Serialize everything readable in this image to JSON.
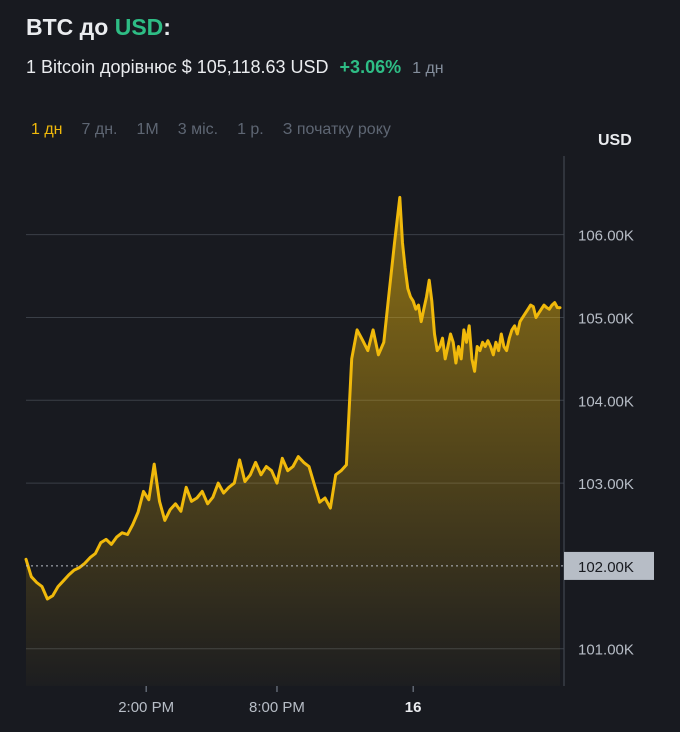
{
  "header": {
    "base": "BTC",
    "connector": "до",
    "quote": "USD",
    "colon": ":"
  },
  "price_line": {
    "text": "1 Bitcoin дорівнює $ 105,118.63 USD",
    "change": "+3.06%",
    "period": "1 дн"
  },
  "tabs": [
    {
      "label": "1 дн",
      "active": true
    },
    {
      "label": "7 дн.",
      "active": false
    },
    {
      "label": "1M",
      "active": false
    },
    {
      "label": "3 міс.",
      "active": false
    },
    {
      "label": "1 р.",
      "active": false
    },
    {
      "label": "З початку року",
      "active": false
    }
  ],
  "colors": {
    "background": "#181a20",
    "line": "#f0b90b",
    "positive": "#2ebd85",
    "muted": "#848e9c",
    "grid": "#3a3f47"
  },
  "chart_data": {
    "type": "area",
    "y_axis_unit": "USD",
    "y_ticks": [
      "106.00K",
      "105.00K",
      "104.00K",
      "103.00K",
      "101.00K"
    ],
    "ylim": [
      100550,
      106950
    ],
    "reference": {
      "label": "102.00K",
      "value": 102000
    },
    "x_ticks": [
      "2:00 PM",
      "8:00 PM",
      "16"
    ],
    "x_tick_bold": [
      false,
      false,
      true
    ],
    "x_tick_t": [
      0.225,
      0.47,
      0.725
    ],
    "grid": true,
    "series": [
      {
        "t": [
          0,
          0.01,
          0.02,
          0.03,
          0.04,
          0.05,
          0.06,
          0.07,
          0.08,
          0.09,
          0.1,
          0.11,
          0.12,
          0.13,
          0.14,
          0.15,
          0.16,
          0.17,
          0.18,
          0.19,
          0.2,
          0.21,
          0.22,
          0.23,
          0.24,
          0.25,
          0.26,
          0.27,
          0.28,
          0.29,
          0.3,
          0.31,
          0.32,
          0.33,
          0.34,
          0.35,
          0.36,
          0.37,
          0.38,
          0.39,
          0.4,
          0.41,
          0.42,
          0.43,
          0.44,
          0.45,
          0.46,
          0.47,
          0.48,
          0.49,
          0.5,
          0.51,
          0.52,
          0.53,
          0.54,
          0.55,
          0.56,
          0.57,
          0.58,
          0.59,
          0.6,
          0.61,
          0.62,
          0.63,
          0.64,
          0.65,
          0.66,
          0.67,
          0.68,
          0.69,
          0.7,
          0.705,
          0.71,
          0.715,
          0.72,
          0.725,
          0.73,
          0.735,
          0.74,
          0.745,
          0.75,
          0.755,
          0.76,
          0.765,
          0.77,
          0.775,
          0.78,
          0.785,
          0.79,
          0.795,
          0.8,
          0.805,
          0.81,
          0.815,
          0.82,
          0.825,
          0.83,
          0.835,
          0.84,
          0.845,
          0.85,
          0.855,
          0.86,
          0.865,
          0.87,
          0.875,
          0.88,
          0.885,
          0.89,
          0.895,
          0.9,
          0.905,
          0.91,
          0.915,
          0.92,
          0.925,
          0.93,
          0.935,
          0.94,
          0.945,
          0.95,
          0.955,
          0.96,
          0.965,
          0.97,
          0.975,
          0.98,
          0.985,
          0.99,
          0.995,
          1.0
        ],
        "values": [
          102080,
          101870,
          101800,
          101750,
          101600,
          101640,
          101750,
          101820,
          101890,
          101950,
          101980,
          102030,
          102100,
          102150,
          102280,
          102320,
          102260,
          102350,
          102400,
          102380,
          102500,
          102650,
          102900,
          102800,
          103230,
          102780,
          102550,
          102680,
          102750,
          102660,
          102950,
          102780,
          102820,
          102900,
          102750,
          102830,
          103000,
          102880,
          102950,
          103000,
          103280,
          103020,
          103100,
          103250,
          103100,
          103200,
          103150,
          103000,
          103300,
          103150,
          103200,
          103320,
          103250,
          103200,
          102980,
          102770,
          102820,
          102700,
          103100,
          103150,
          103220,
          104500,
          104850,
          104730,
          104600,
          104850,
          104550,
          104700,
          105300,
          105900,
          106450,
          105900,
          105600,
          105350,
          105250,
          105200,
          105100,
          105150,
          104950,
          105100,
          105250,
          105450,
          105200,
          104800,
          104600,
          104650,
          104750,
          104500,
          104650,
          104800,
          104700,
          104450,
          104650,
          104500,
          104850,
          104700,
          104900,
          104500,
          104350,
          104650,
          104600,
          104700,
          104650,
          104720,
          104650,
          104550,
          104700,
          104600,
          104800,
          104650,
          104600,
          104750,
          104850,
          104900,
          104800,
          104950,
          105000,
          105050,
          105100,
          105150,
          105130,
          105000,
          105050,
          105100,
          105150,
          105120,
          105100,
          105150,
          105180,
          105120,
          105118
        ]
      }
    ]
  }
}
